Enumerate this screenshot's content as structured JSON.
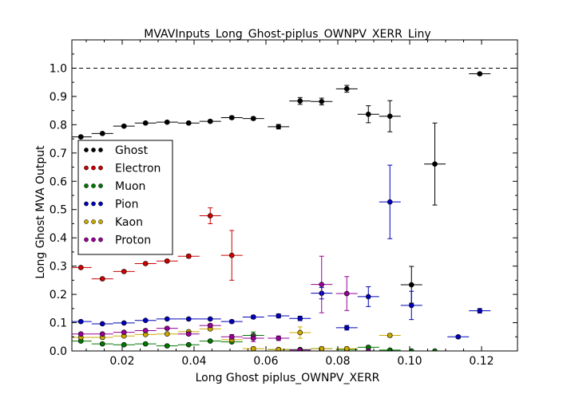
{
  "chart_data": {
    "type": "scatter",
    "title": "MVAVInputs_Long_Ghost-piplus_OWNPV_XERR_Liny",
    "xlabel": "Long Ghost piplus_OWNPV_XERR",
    "ylabel": "Long Ghost MVA Output",
    "xlim": [
      0.006,
      0.13
    ],
    "ylim": [
      0.0,
      1.1
    ],
    "xticks": [
      0.02,
      0.04,
      0.06,
      0.08,
      0.1,
      0.12
    ],
    "xtick_labels": [
      "0.02",
      "0.04",
      "0.06",
      "0.08",
      "0.10",
      "0.12"
    ],
    "yticks": [
      0.0,
      0.1,
      0.2,
      0.3,
      0.4,
      0.5,
      0.6,
      0.7,
      0.8,
      0.9,
      1.0
    ],
    "ytick_labels": [
      "0.0",
      "0.1",
      "0.2",
      "0.3",
      "0.4",
      "0.5",
      "0.6",
      "0.7",
      "0.8",
      "0.9",
      "1.0"
    ],
    "reference_line": {
      "y": 1.0,
      "style": "dashed"
    },
    "grid": false,
    "legend_position": "left-center",
    "bin_half_width": 0.003,
    "series": [
      {
        "name": "Ghost",
        "color": "#000000",
        "points": [
          [
            0.0085,
            0.757,
            0.004
          ],
          [
            0.0145,
            0.769,
            0.004
          ],
          [
            0.0205,
            0.795,
            0.004
          ],
          [
            0.0265,
            0.806,
            0.004
          ],
          [
            0.0325,
            0.809,
            0.004
          ],
          [
            0.0385,
            0.806,
            0.004
          ],
          [
            0.0445,
            0.812,
            0.004
          ],
          [
            0.0505,
            0.825,
            0.005
          ],
          [
            0.0565,
            0.822,
            0.005
          ],
          [
            0.0635,
            0.793,
            0.008
          ],
          [
            0.0695,
            0.884,
            0.012
          ],
          [
            0.0755,
            0.882,
            0.012
          ],
          [
            0.0825,
            0.927,
            0.012
          ],
          [
            0.0885,
            0.837,
            0.03
          ],
          [
            0.0945,
            0.83,
            0.055
          ],
          [
            0.1005,
            0.234,
            0.065
          ],
          [
            0.107,
            0.661,
            0.145
          ],
          [
            0.1195,
            0.98,
            0.004
          ]
        ]
      },
      {
        "name": "Electron",
        "color": "#cc0000",
        "points": [
          [
            0.0085,
            0.295,
            0.004
          ],
          [
            0.0145,
            0.255,
            0.004
          ],
          [
            0.0205,
            0.281,
            0.004
          ],
          [
            0.0265,
            0.309,
            0.004
          ],
          [
            0.0325,
            0.318,
            0.004
          ],
          [
            0.0385,
            0.335,
            0.006
          ],
          [
            0.0445,
            0.478,
            0.028
          ],
          [
            0.0505,
            0.338,
            0.088
          ]
        ]
      },
      {
        "name": "Muon",
        "color": "#007700",
        "points": [
          [
            0.0085,
            0.035,
            0.003
          ],
          [
            0.0145,
            0.025,
            0.003
          ],
          [
            0.0205,
            0.022,
            0.003
          ],
          [
            0.0265,
            0.025,
            0.003
          ],
          [
            0.0325,
            0.018,
            0.003
          ],
          [
            0.0385,
            0.022,
            0.003
          ],
          [
            0.0445,
            0.035,
            0.003
          ],
          [
            0.0505,
            0.032,
            0.004
          ],
          [
            0.0565,
            0.055,
            0.012
          ],
          [
            0.0635,
            0.005,
            0.003
          ],
          [
            0.0695,
            0.005,
            0.003
          ],
          [
            0.0755,
            0.008,
            0.003
          ],
          [
            0.0825,
            0.005,
            0.003
          ],
          [
            0.0885,
            0.013,
            0.005
          ],
          [
            0.0945,
            0.003,
            0.003
          ],
          [
            0.1005,
            0.0,
            0.002
          ],
          [
            0.107,
            0.0,
            0.002
          ]
        ]
      },
      {
        "name": "Pion",
        "color": "#0000bb",
        "points": [
          [
            0.0085,
            0.104,
            0.003
          ],
          [
            0.0145,
            0.096,
            0.003
          ],
          [
            0.0205,
            0.099,
            0.003
          ],
          [
            0.0265,
            0.108,
            0.003
          ],
          [
            0.0325,
            0.113,
            0.003
          ],
          [
            0.0385,
            0.113,
            0.004
          ],
          [
            0.0445,
            0.113,
            0.004
          ],
          [
            0.0505,
            0.104,
            0.005
          ],
          [
            0.0565,
            0.12,
            0.006
          ],
          [
            0.0635,
            0.124,
            0.007
          ],
          [
            0.0695,
            0.115,
            0.008
          ],
          [
            0.0755,
            0.204,
            0.02
          ],
          [
            0.0825,
            0.082,
            0.008
          ],
          [
            0.0885,
            0.192,
            0.035
          ],
          [
            0.0945,
            0.527,
            0.13
          ],
          [
            0.1005,
            0.161,
            0.05
          ],
          [
            0.1135,
            0.05,
            0.005
          ],
          [
            0.1195,
            0.142,
            0.008
          ]
        ]
      },
      {
        "name": "Kaon",
        "color": "#ccaa00",
        "points": [
          [
            0.0085,
            0.048,
            0.003
          ],
          [
            0.0145,
            0.048,
            0.003
          ],
          [
            0.0205,
            0.053,
            0.003
          ],
          [
            0.0265,
            0.058,
            0.003
          ],
          [
            0.0325,
            0.06,
            0.003
          ],
          [
            0.0385,
            0.068,
            0.004
          ],
          [
            0.0445,
            0.078,
            0.005
          ],
          [
            0.0505,
            0.04,
            0.008
          ],
          [
            0.0565,
            0.008,
            0.006
          ],
          [
            0.0635,
            0.005,
            0.005
          ],
          [
            0.0695,
            0.065,
            0.02
          ],
          [
            0.0755,
            0.008,
            0.006
          ],
          [
            0.0825,
            0.008,
            0.006
          ],
          [
            0.0945,
            0.055,
            0.006
          ]
        ]
      },
      {
        "name": "Proton",
        "color": "#990099",
        "points": [
          [
            0.0085,
            0.06,
            0.003
          ],
          [
            0.0145,
            0.06,
            0.003
          ],
          [
            0.0205,
            0.066,
            0.003
          ],
          [
            0.0265,
            0.072,
            0.004
          ],
          [
            0.0325,
            0.08,
            0.004
          ],
          [
            0.0385,
            0.06,
            0.005
          ],
          [
            0.0445,
            0.09,
            0.006
          ],
          [
            0.0505,
            0.05,
            0.008
          ],
          [
            0.0565,
            0.045,
            0.012
          ],
          [
            0.0635,
            0.045,
            0.008
          ],
          [
            0.0695,
            0.003,
            0.003
          ],
          [
            0.0755,
            0.235,
            0.1
          ],
          [
            0.0825,
            0.203,
            0.06
          ],
          [
            0.0885,
            0.0,
            0.002
          ]
        ]
      }
    ]
  }
}
